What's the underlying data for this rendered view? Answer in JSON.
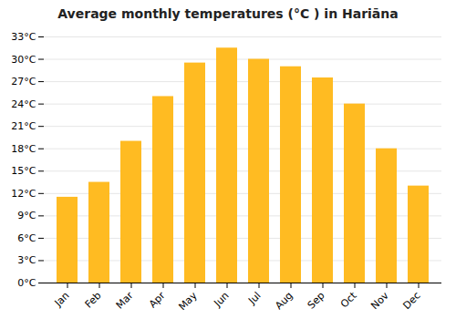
{
  "chart_data": {
    "type": "bar",
    "title": "Average monthly temperatures (°C ) in Hariāna",
    "categories": [
      "Jan",
      "Feb",
      "Mar",
      "Apr",
      "May",
      "Jun",
      "Jul",
      "Aug",
      "Sep",
      "Oct",
      "Nov",
      "Dec"
    ],
    "values": [
      11.5,
      13.5,
      19.0,
      25.0,
      29.5,
      31.5,
      30.0,
      29.0,
      27.5,
      24.0,
      18.0,
      13.0
    ],
    "color": "#FFBB22",
    "ylim": [
      0,
      33
    ],
    "yticks": [
      {
        "value": 0,
        "label": "0°C"
      },
      {
        "value": 3,
        "label": "3°C"
      },
      {
        "value": 6,
        "label": "6°C"
      },
      {
        "value": 9,
        "label": "9°C"
      },
      {
        "value": 12,
        "label": "12°C"
      },
      {
        "value": 15,
        "label": "15°C"
      },
      {
        "value": 18,
        "label": "18°C"
      },
      {
        "value": 21,
        "label": "21°C"
      },
      {
        "value": 24,
        "label": "24°C"
      },
      {
        "value": 27,
        "label": "27°C"
      },
      {
        "value": 30,
        "label": "30°C"
      },
      {
        "value": 33,
        "label": "33°C"
      }
    ],
    "grid": true
  }
}
